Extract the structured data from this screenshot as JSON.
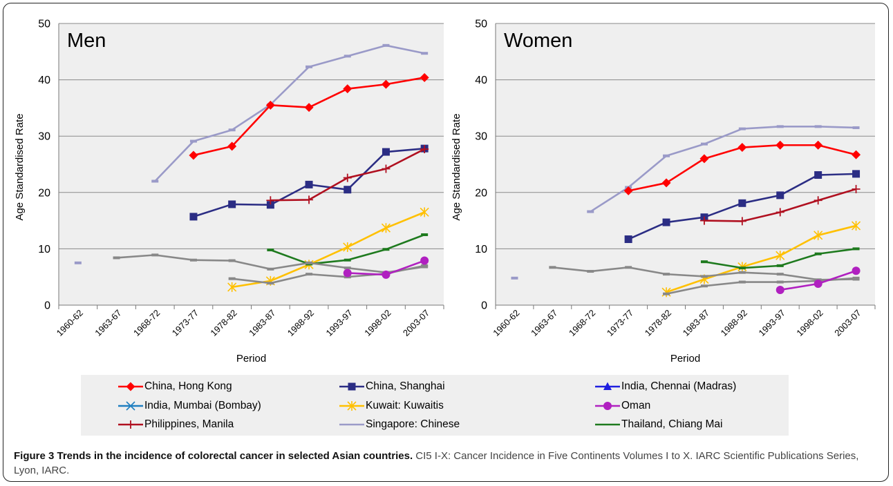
{
  "caption": {
    "bold": "Figure 3 Trends in the incidence of colorectal cancer in selected Asian countries.",
    "text": " CI5 I-X: Cancer Incidence in Five Continents Volumes I to X. IARC  Scientific Publications Series, Lyon, IARC."
  },
  "legend": [
    {
      "name": "China, Hong Kong",
      "color": "#ff0000",
      "marker": "diamond"
    },
    {
      "name": "China, Shanghai",
      "color": "#2b2d84",
      "marker": "square"
    },
    {
      "name": "India, Chennai (Madras)",
      "color": "#1f1fe0",
      "marker": "triangle"
    },
    {
      "name": "India, Mumbai (Bombay)",
      "color": "#1f7fc0",
      "marker": "x"
    },
    {
      "name": "Kuwait: Kuwaitis",
      "color": "#ffc000",
      "marker": "star"
    },
    {
      "name": "Oman",
      "color": "#b020c0",
      "marker": "circle"
    },
    {
      "name": "Philippines, Manila",
      "color": "#b01020",
      "marker": "plus"
    },
    {
      "name": "Singapore: Chinese",
      "color": "#9a9ac8",
      "marker": "dash"
    },
    {
      "name": "Thailand, Chiang Mai",
      "color": "#1e7a1e",
      "marker": "dash"
    }
  ],
  "chart_data": [
    {
      "type": "line",
      "title": "Men",
      "xlabel": "Period",
      "ylabel": "Age Standardised Rate",
      "ylim": [
        0,
        50
      ],
      "yticks": [
        "0",
        "10",
        "20",
        "30",
        "40",
        "50"
      ],
      "categories": [
        "1960-62",
        "1963-67",
        "1968-72",
        "1973-77",
        "1978-82",
        "1983-87",
        "1988-92",
        "1993-97",
        "1998-02",
        "2003-07"
      ],
      "grid": "horizontal",
      "series": [
        {
          "name": "Singapore: Chinese",
          "values": [
            null,
            null,
            22.0,
            29.1,
            31.1,
            35.6,
            42.3,
            44.2,
            46.1,
            44.7
          ]
        },
        {
          "name": "China, Hong Kong",
          "values": [
            null,
            null,
            null,
            26.6,
            28.2,
            35.5,
            35.1,
            38.4,
            39.2,
            40.4
          ]
        },
        {
          "name": "China, Shanghai",
          "values": [
            null,
            null,
            null,
            15.7,
            17.9,
            17.8,
            21.4,
            20.5,
            27.2,
            27.8
          ]
        },
        {
          "name": "Philippines, Manila",
          "values": [
            null,
            null,
            null,
            null,
            null,
            18.6,
            18.7,
            22.6,
            24.2,
            27.7
          ]
        },
        {
          "name": "Kuwait: Kuwaitis",
          "values": [
            null,
            null,
            null,
            null,
            3.2,
            4.3,
            7.2,
            10.3,
            13.7,
            16.5
          ]
        },
        {
          "name": "Thailand, Chiang Mai",
          "values": [
            null,
            null,
            null,
            null,
            null,
            9.8,
            7.3,
            8.0,
            9.9,
            12.5
          ]
        },
        {
          "name": "India, Mumbai (Bombay)",
          "values": [
            null,
            8.4,
            8.9,
            8.0,
            7.9,
            6.4,
            7.5,
            6.6,
            5.8,
            6.8
          ]
        },
        {
          "name": "India, Chennai (Madras)",
          "values": [
            null,
            null,
            null,
            null,
            4.7,
            3.9,
            5.5,
            5.0,
            5.6,
            7.0
          ]
        },
        {
          "name": "Oman",
          "values": [
            null,
            null,
            null,
            null,
            null,
            null,
            null,
            5.7,
            5.4,
            7.9
          ]
        },
        {
          "name": "Singapore: Chinese (1960-62)",
          "values": [
            7.5,
            null,
            null,
            null,
            null,
            null,
            null,
            null,
            null,
            null
          ]
        }
      ]
    },
    {
      "type": "line",
      "title": "Women",
      "xlabel": "Period",
      "ylabel": "Age Standardised Rate",
      "ylim": [
        0,
        50
      ],
      "yticks": [
        "0",
        "10",
        "20",
        "30",
        "40",
        "50"
      ],
      "categories": [
        "1960-62",
        "1963-67",
        "1968-72",
        "1973-77",
        "1978-82",
        "1983-87",
        "1988-92",
        "1993-97",
        "1998-02",
        "2003-07"
      ],
      "grid": "horizontal",
      "series": [
        {
          "name": "Singapore: Chinese",
          "values": [
            null,
            null,
            16.6,
            20.9,
            26.5,
            28.6,
            31.3,
            31.7,
            31.7,
            31.5
          ]
        },
        {
          "name": "China, Hong Kong",
          "values": [
            null,
            null,
            null,
            20.3,
            21.7,
            26.0,
            28.0,
            28.4,
            28.4,
            26.7
          ]
        },
        {
          "name": "China, Shanghai",
          "values": [
            null,
            null,
            null,
            11.7,
            14.7,
            15.6,
            18.1,
            19.5,
            23.1,
            23.3
          ]
        },
        {
          "name": "Philippines, Manila",
          "values": [
            null,
            null,
            null,
            null,
            null,
            15.0,
            14.9,
            16.5,
            18.6,
            20.6
          ]
        },
        {
          "name": "Kuwait: Kuwaitis",
          "values": [
            null,
            null,
            null,
            null,
            2.3,
            4.6,
            6.8,
            8.8,
            12.4,
            14.1
          ]
        },
        {
          "name": "Thailand, Chiang Mai",
          "values": [
            null,
            null,
            null,
            null,
            null,
            7.7,
            6.6,
            7.0,
            9.1,
            10.0
          ]
        },
        {
          "name": "India, Mumbai (Bombay)",
          "values": [
            null,
            6.7,
            6.0,
            6.7,
            5.5,
            5.1,
            5.8,
            5.5,
            4.5,
            4.6
          ]
        },
        {
          "name": "India, Chennai (Madras)",
          "values": [
            null,
            null,
            null,
            null,
            2.0,
            3.4,
            4.1,
            4.1,
            4.3,
            4.8
          ]
        },
        {
          "name": "Oman",
          "values": [
            null,
            null,
            null,
            null,
            null,
            null,
            null,
            2.7,
            3.8,
            6.1
          ]
        },
        {
          "name": "Singapore: Chinese (1960-62)",
          "values": [
            4.8,
            null,
            null,
            null,
            null,
            null,
            null,
            null,
            null,
            null
          ]
        }
      ]
    }
  ]
}
